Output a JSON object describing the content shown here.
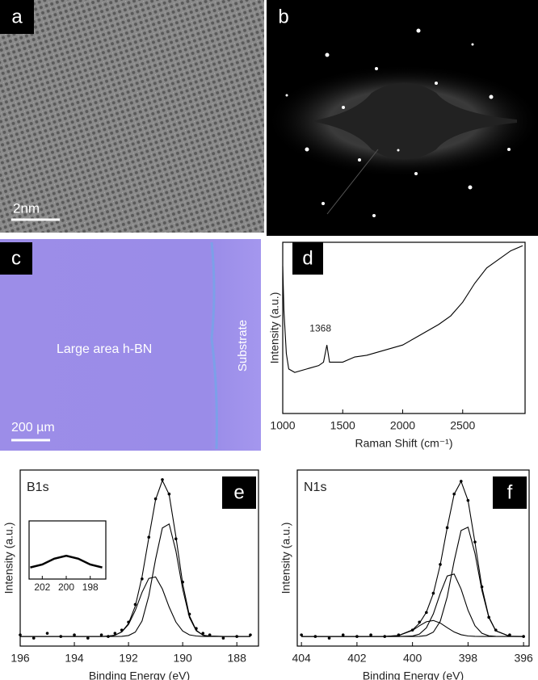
{
  "panels": [
    {
      "label": "a",
      "scale_bar": "2nm"
    },
    {
      "label": "b"
    },
    {
      "label": "c",
      "text": "Large area h-BN",
      "side_text": "Substrate",
      "scale_bar": "200 µm"
    }
  ],
  "chart_data": [
    {
      "type": "line",
      "label": "d",
      "x_label": "Raman Shift (cm⁻¹)",
      "y_label": "Intensity (a.u.)",
      "annotation": "1368",
      "x": [
        1000,
        1010,
        1030,
        1050,
        1100,
        1200,
        1300,
        1340,
        1368,
        1390,
        1450,
        1500,
        1600,
        1700,
        1800,
        1900,
        2000,
        2100,
        2200,
        2300,
        2400,
        2500,
        2600,
        2700,
        2800,
        2900,
        3000
      ],
      "series": [
        {
          "color": "#000000",
          "style": "line",
          "values": [
            86,
            60,
            35,
            26,
            24,
            26,
            28,
            30,
            40,
            30,
            30,
            30,
            33,
            34,
            36,
            38,
            40,
            44,
            48,
            52,
            57,
            65,
            76,
            85,
            90,
            95,
            98
          ]
        }
      ],
      "xlim": [
        1000,
        3020
      ],
      "ylim": [
        0,
        100
      ],
      "xticks": [
        1000,
        1500,
        2000,
        2500
      ]
    },
    {
      "type": "line",
      "label": "e",
      "peak_label": "B1s",
      "x_label": "Binding Energy (eV)",
      "y_label": "Intensity (a.u.)",
      "x": [
        196,
        195.5,
        195,
        194.5,
        194,
        193.5,
        193,
        192.75,
        192.5,
        192.25,
        192,
        191.75,
        191.5,
        191.25,
        191,
        190.75,
        190.5,
        190.25,
        190,
        189.75,
        189.5,
        189.25,
        189,
        188.5,
        188,
        187.5
      ],
      "series": [
        {
          "color": "#000000",
          "style": "line",
          "values": [
            0,
            0,
            0,
            0,
            0,
            0,
            0,
            0,
            0,
            0.1,
            0.6,
            2.7,
            9.7,
            25.4,
            48.3,
            67.8,
            70.3,
            53.4,
            29.6,
            11.9,
            3.6,
            0.8,
            0.2,
            0,
            0,
            0
          ]
        },
        {
          "color": "#000000",
          "style": "line",
          "values": [
            0,
            0,
            0,
            0,
            0,
            0,
            0,
            0.2,
            0.8,
            2.8,
            7.5,
            16.3,
            27.6,
            36.3,
            37.2,
            29.7,
            18.4,
            9,
            3.4,
            1,
            0.3,
            0,
            0,
            0,
            0,
            0
          ]
        },
        {
          "color": "#000000",
          "style": "line",
          "values": [
            0,
            0,
            0,
            0,
            0,
            0,
            0,
            0.2,
            0.8,
            2.9,
            8.1,
            19,
            37.3,
            61.7,
            85.5,
            97.5,
            88.7,
            62.4,
            33,
            12.9,
            3.9,
            0.8,
            0.2,
            0,
            0,
            0
          ]
        },
        {
          "color": "#000000",
          "style": "markers",
          "values": [
            1,
            -1,
            2,
            0,
            1,
            -1,
            1,
            0,
            2,
            4,
            9,
            20,
            36,
            62,
            86,
            98,
            89,
            61,
            34,
            14,
            5,
            2,
            1,
            -1,
            0,
            1
          ]
        }
      ],
      "xlim": [
        196,
        187.2
      ],
      "ylim": [
        -6,
        104
      ],
      "xticks": [
        196,
        194,
        192,
        190,
        188
      ],
      "inset": {
        "x": [
          203,
          202,
          201,
          200,
          199,
          198,
          197
        ],
        "values": [
          2,
          2.5,
          3.5,
          4,
          3.5,
          2.5,
          2
        ],
        "xlim": [
          203.1,
          196.7
        ],
        "ylim": [
          0,
          10
        ],
        "xticks": [
          202,
          200,
          198
        ]
      }
    },
    {
      "type": "line",
      "label": "f",
      "peak_label": "N1s",
      "x_label": "Binding Energy (eV)",
      "y_label": "Intensity (a.u.)",
      "x": [
        404,
        403.5,
        403,
        402.5,
        402,
        401.5,
        401,
        400.5,
        400,
        399.75,
        399.5,
        399.25,
        399,
        398.75,
        398.5,
        398.25,
        398,
        397.75,
        397.5,
        397.25,
        397,
        396.5,
        396
      ],
      "series": [
        {
          "color": "#000000",
          "style": "line",
          "values": [
            0,
            0,
            0,
            0,
            0,
            0,
            0,
            0,
            0,
            0.1,
            0.6,
            2.7,
            9.5,
            24.7,
            47.1,
            66.2,
            68.3,
            51.9,
            28.8,
            11.8,
            3.5,
            0.1,
            0
          ]
        },
        {
          "color": "#000000",
          "style": "line",
          "values": [
            0,
            0,
            0,
            0,
            0,
            0,
            0,
            0,
            0.3,
            1.5,
            5.4,
            14.1,
            26.9,
            37.8,
            39,
            29.6,
            16.4,
            6.7,
            2,
            0.4,
            0.1,
            0,
            0
          ]
        },
        {
          "color": "#000000",
          "style": "line",
          "values": [
            0,
            0,
            0,
            0,
            0,
            0,
            0,
            0.6,
            3.8,
            6.7,
            9.2,
            10,
            8.4,
            5.5,
            2.8,
            1.1,
            0.3,
            0.1,
            0,
            0,
            0,
            0,
            0
          ]
        },
        {
          "color": "#000000",
          "style": "line",
          "values": [
            0,
            0,
            0,
            0,
            0,
            0,
            0,
            0.6,
            4.1,
            8.3,
            15.2,
            26.8,
            44.8,
            68,
            88.9,
            96.9,
            85,
            58.7,
            30.8,
            12.2,
            3.6,
            0.1,
            0
          ]
        },
        {
          "color": "#000000",
          "style": "markers",
          "values": [
            1,
            0,
            -1,
            1,
            0,
            1,
            0,
            1,
            4,
            9,
            15,
            27,
            45,
            68,
            89,
            97,
            85,
            59,
            31,
            12,
            4,
            1,
            0
          ]
        }
      ],
      "xlim": [
        404.15,
        395.8
      ],
      "ylim": [
        -6,
        104
      ],
      "xticks": [
        404,
        402,
        400,
        398,
        396
      ]
    }
  ]
}
